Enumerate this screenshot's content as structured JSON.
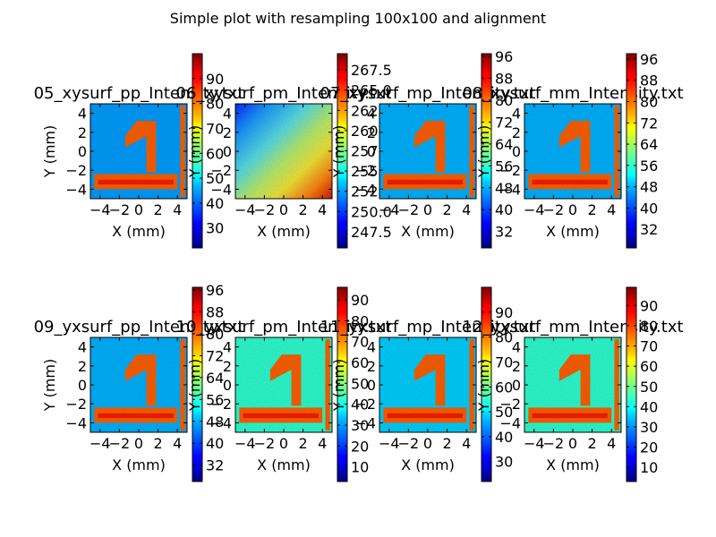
{
  "figure": {
    "title": "Simple plot with resampling 100x100 and alignment"
  },
  "chart_data": [
    {
      "type": "heatmap",
      "title": "05_xysurf_pp_Intensity.txt",
      "xlabel": "X (mm)",
      "ylabel": "Y (mm)",
      "xlim": [
        -5,
        5
      ],
      "ylim": [
        -5,
        5
      ],
      "xticks": [
        -4,
        -2,
        0,
        2,
        4
      ],
      "yticks": [
        -4,
        -2,
        0,
        2,
        4
      ],
      "colormap": "jet",
      "clim": [
        22,
        100
      ],
      "cbticks": [
        30,
        40,
        50,
        60,
        70,
        80,
        90
      ],
      "pattern": "digit",
      "bg": 0.28
    },
    {
      "type": "heatmap",
      "title": "06_xysurf_pm_Intensity.txt",
      "xlabel": "X (mm)",
      "ylabel": "Y (mm)",
      "xlim": [
        -5,
        5
      ],
      "ylim": [
        -5,
        5
      ],
      "xticks": [
        -4,
        -2,
        0,
        2,
        4
      ],
      "yticks": [
        -4,
        -2,
        0,
        2,
        4
      ],
      "colormap": "jet",
      "clim": [
        245.5,
        269.5
      ],
      "cbticks": [
        247.5,
        250.0,
        252.5,
        255.0,
        257.5,
        260.0,
        262.5,
        265.0,
        267.5
      ],
      "pattern": "gradient",
      "bg": 0.5
    },
    {
      "type": "heatmap",
      "title": "07_xysurf_mp_Intensity.txt",
      "xlabel": "X (mm)",
      "ylabel": "Y (mm)",
      "xlim": [
        -5,
        5
      ],
      "ylim": [
        -5,
        5
      ],
      "xticks": [
        -4,
        -2,
        0,
        2,
        4
      ],
      "yticks": [
        -4,
        -2,
        0,
        2,
        4
      ],
      "colormap": "jet",
      "clim": [
        26,
        97
      ],
      "cbticks": [
        32,
        40,
        48,
        56,
        64,
        72,
        80,
        88,
        96
      ],
      "pattern": "digit",
      "bg": 0.3
    },
    {
      "type": "heatmap",
      "title": "08_xysurf_mm_Intensity.txt",
      "xlabel": "X (mm)",
      "ylabel": "Y (mm)",
      "xlim": [
        -5,
        5
      ],
      "ylim": [
        -5,
        5
      ],
      "xticks": [
        -4,
        -2,
        0,
        2,
        4
      ],
      "yticks": [
        -4,
        -2,
        0,
        2,
        4
      ],
      "colormap": "jet",
      "clim": [
        25,
        98
      ],
      "cbticks": [
        32,
        40,
        48,
        56,
        64,
        72,
        80,
        88,
        96
      ],
      "pattern": "digit",
      "bg": 0.3
    },
    {
      "type": "heatmap",
      "title": "09_yxsurf_pp_Intensity.txt",
      "xlabel": "X (mm)",
      "ylabel": "Y (mm)",
      "xlim": [
        -5,
        5
      ],
      "ylim": [
        -5,
        5
      ],
      "xticks": [
        -4,
        -2,
        0,
        2,
        4
      ],
      "yticks": [
        -4,
        -2,
        0,
        2,
        4
      ],
      "colormap": "jet",
      "clim": [
        26,
        97
      ],
      "cbticks": [
        32,
        40,
        48,
        56,
        64,
        72,
        80,
        88,
        96
      ],
      "pattern": "digit",
      "bg": 0.3
    },
    {
      "type": "heatmap",
      "title": "10_yxsurf_pm_Intensity.txt",
      "xlabel": "X (mm)",
      "ylabel": "Y (mm)",
      "xlim": [
        -5,
        5
      ],
      "ylim": [
        -5,
        5
      ],
      "xticks": [
        -4,
        -2,
        0,
        2,
        4
      ],
      "yticks": [
        -4,
        -2,
        0,
        2,
        4
      ],
      "colormap": "jet",
      "clim": [
        3,
        96
      ],
      "cbticks": [
        10,
        20,
        30,
        40,
        50,
        60,
        70,
        80,
        90
      ],
      "pattern": "digit",
      "bg": 0.42
    },
    {
      "type": "heatmap",
      "title": "11_yxsurf_mp_Intensity.txt",
      "xlabel": "X (mm)",
      "ylabel": "Y (mm)",
      "xlim": [
        -5,
        5
      ],
      "ylim": [
        -5,
        5
      ],
      "xticks": [
        -4,
        -2,
        0,
        2,
        4
      ],
      "yticks": [
        -4,
        -2,
        0,
        2,
        4
      ],
      "colormap": "jet",
      "clim": [
        22,
        100
      ],
      "cbticks": [
        30,
        40,
        50,
        60,
        70,
        80,
        90
      ],
      "pattern": "digit",
      "bg": 0.33
    },
    {
      "type": "heatmap",
      "title": "12_yxsurf_mm_Intensity.txt",
      "xlabel": "X (mm)",
      "ylabel": "Y (mm)",
      "xlim": [
        -5,
        5
      ],
      "ylim": [
        -5,
        5
      ],
      "xticks": [
        -4,
        -2,
        0,
        2,
        4
      ],
      "yticks": [
        -4,
        -2,
        0,
        2,
        4
      ],
      "colormap": "jet",
      "clim": [
        3,
        99
      ],
      "cbticks": [
        10,
        20,
        30,
        40,
        50,
        60,
        70,
        80,
        90
      ],
      "pattern": "digit",
      "bg": 0.42
    }
  ]
}
